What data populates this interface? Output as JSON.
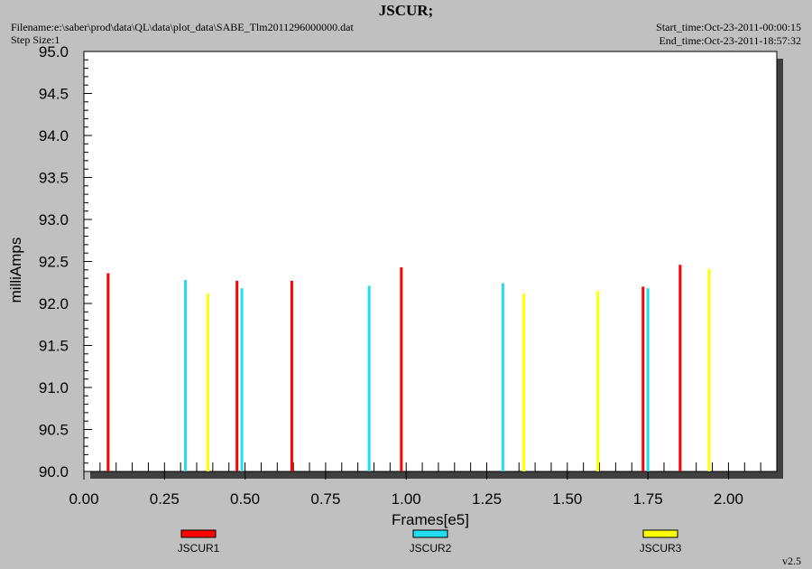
{
  "header": {
    "title": "JSCUR;",
    "filename": "Filename:e:\\saber\\prod\\data\\QL\\data\\plot_data\\SABE_Tlm2011296000000.dat",
    "step_size": "Step Size:1",
    "start_time": "Start_time:Oct-23-2011-00:00:15",
    "end_time": "End_time:Oct-23-2011-18:57:32"
  },
  "version": "v2.5",
  "chart_data": {
    "type": "bar",
    "xlabel": "Frames[e5]",
    "ylabel": "milliAmps",
    "xlim": [
      0.0,
      2.15
    ],
    "ylim": [
      90.0,
      95.0
    ],
    "x_ticks": [
      "0.00",
      "0.25",
      "0.50",
      "0.75",
      "1.00",
      "1.25",
      "1.50",
      "1.75",
      "2.00"
    ],
    "y_ticks": [
      "90.0",
      "90.5",
      "91.0",
      "91.5",
      "92.0",
      "92.5",
      "93.0",
      "93.5",
      "94.0",
      "94.5",
      "95.0"
    ],
    "grid": false,
    "legend_position": "bottom",
    "series": [
      {
        "name": "JSCUR1",
        "color": "#ff0000",
        "x": [
          0.075,
          0.475,
          0.645,
          0.985,
          1.735,
          1.85
        ],
        "y": [
          92.36,
          92.27,
          92.27,
          92.43,
          92.2,
          92.46
        ]
      },
      {
        "name": "JSCUR2",
        "color": "#22ddee",
        "x": [
          0.315,
          0.49,
          0.885,
          1.3,
          1.75
        ],
        "y": [
          92.28,
          92.18,
          92.21,
          92.24,
          92.18
        ]
      },
      {
        "name": "JSCUR3",
        "color": "#ffff00",
        "x": [
          0.385,
          1.365,
          1.595,
          1.94
        ],
        "y": [
          92.12,
          92.12,
          92.15,
          92.41
        ]
      }
    ]
  }
}
